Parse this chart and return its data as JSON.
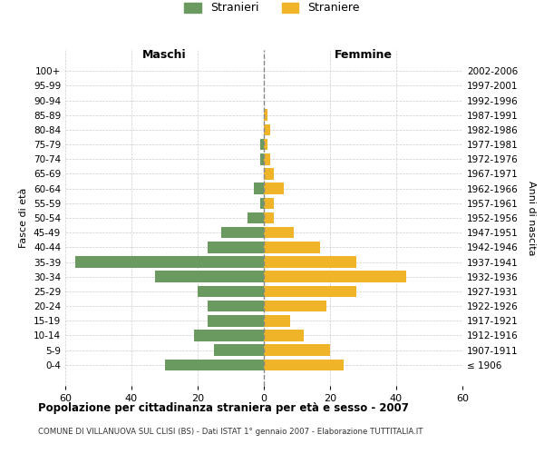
{
  "age_groups": [
    "100+",
    "95-99",
    "90-94",
    "85-89",
    "80-84",
    "75-79",
    "70-74",
    "65-69",
    "60-64",
    "55-59",
    "50-54",
    "45-49",
    "40-44",
    "35-39",
    "30-34",
    "25-29",
    "20-24",
    "15-19",
    "10-14",
    "5-9",
    "0-4"
  ],
  "birth_years": [
    "≤ 1906",
    "1907-1911",
    "1912-1916",
    "1917-1921",
    "1922-1926",
    "1927-1931",
    "1932-1936",
    "1937-1941",
    "1942-1946",
    "1947-1951",
    "1952-1956",
    "1957-1961",
    "1962-1966",
    "1967-1971",
    "1972-1976",
    "1977-1981",
    "1982-1986",
    "1987-1991",
    "1992-1996",
    "1997-2001",
    "2002-2006"
  ],
  "maschi": [
    0,
    0,
    0,
    0,
    0,
    1,
    1,
    0,
    3,
    1,
    5,
    13,
    17,
    57,
    33,
    20,
    17,
    17,
    21,
    15,
    30
  ],
  "femmine": [
    0,
    0,
    0,
    1,
    2,
    1,
    2,
    3,
    6,
    3,
    3,
    9,
    17,
    28,
    43,
    28,
    19,
    8,
    12,
    20,
    24
  ],
  "male_color": "#6a9a5f",
  "female_color": "#f0b429",
  "background_color": "#ffffff",
  "grid_color": "#cccccc",
  "title": "Popolazione per cittadinanza straniera per età e sesso - 2007",
  "subtitle": "COMUNE DI VILLANUOVA SUL CLISI (BS) - Dati ISTAT 1° gennaio 2007 - Elaborazione TUTTITALIA.IT",
  "xlabel_left": "Maschi",
  "xlabel_right": "Femmine",
  "ylabel_left": "Fasce di età",
  "ylabel_right": "Anni di nascita",
  "legend_male": "Stranieri",
  "legend_female": "Straniere",
  "xlim": 60
}
